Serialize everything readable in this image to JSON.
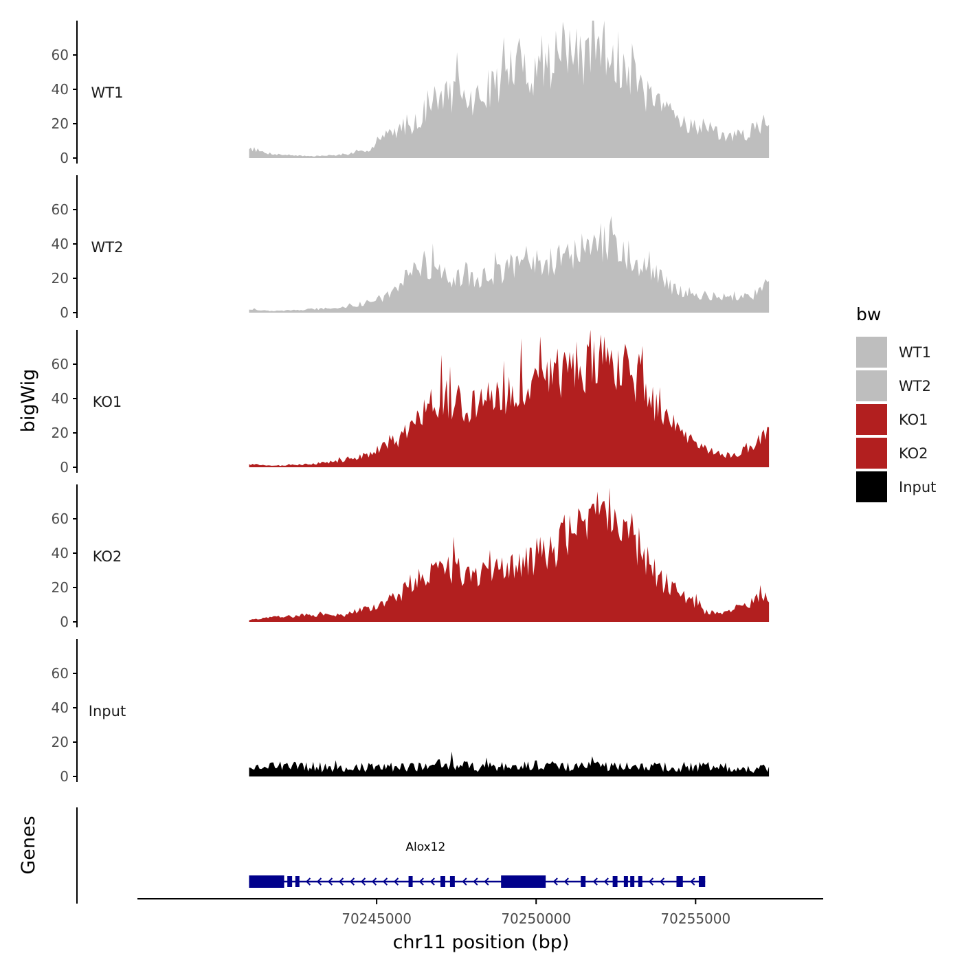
{
  "chart_data": {
    "type": "area",
    "region": {
      "chromosome": "chr11",
      "start": 70241000,
      "end": 70257300
    },
    "xlabel": "chr11 position (bp)",
    "ylabel": "bigWig",
    "xlim": [
      70237500,
      70259000
    ],
    "ylim": [
      0,
      80
    ],
    "x_ticks": [
      70245000,
      70250000,
      70255000
    ],
    "x_tick_labels": [
      "70245000",
      "70250000",
      "70255000"
    ],
    "y_ticks": [
      0,
      20,
      40,
      60
    ],
    "y_tick_labels": [
      "0",
      "20",
      "40",
      "60"
    ],
    "grid": false,
    "legend": {
      "title": "bw",
      "position": "right",
      "entries": [
        {
          "name": "WT1",
          "color": "#bebebe"
        },
        {
          "name": "WT2",
          "color": "#bebebe"
        },
        {
          "name": "KO1",
          "color": "#b21f1f"
        },
        {
          "name": "KO2",
          "color": "#b21f1f"
        },
        {
          "name": "Input",
          "color": "#000000"
        }
      ]
    },
    "series": [
      {
        "name": "WT1",
        "color": "#bebebe",
        "anchors": [
          [
            70241000,
            6
          ],
          [
            70241500,
            3
          ],
          [
            70242000,
            2
          ],
          [
            70243000,
            1
          ],
          [
            70244000,
            2
          ],
          [
            70244700,
            4
          ],
          [
            70245200,
            12
          ],
          [
            70245800,
            18
          ],
          [
            70246200,
            20
          ],
          [
            70246600,
            30
          ],
          [
            70247000,
            35
          ],
          [
            70247500,
            38
          ],
          [
            70248000,
            32
          ],
          [
            70248500,
            40
          ],
          [
            70249000,
            48
          ],
          [
            70249500,
            55
          ],
          [
            70250000,
            50
          ],
          [
            70250500,
            57
          ],
          [
            70251000,
            62
          ],
          [
            70251500,
            55
          ],
          [
            70251800,
            68
          ],
          [
            70252000,
            65
          ],
          [
            70252400,
            60
          ],
          [
            70252800,
            52
          ],
          [
            70253300,
            40
          ],
          [
            70253800,
            30
          ],
          [
            70254300,
            25
          ],
          [
            70254800,
            20
          ],
          [
            70255300,
            16
          ],
          [
            70255800,
            14
          ],
          [
            70256300,
            12
          ],
          [
            70256800,
            16
          ],
          [
            70257300,
            22
          ]
        ]
      },
      {
        "name": "WT2",
        "color": "#bebebe",
        "anchors": [
          [
            70241000,
            2
          ],
          [
            70241500,
            1
          ],
          [
            70242000,
            1
          ],
          [
            70243000,
            2
          ],
          [
            70244000,
            3
          ],
          [
            70244700,
            6
          ],
          [
            70245200,
            9
          ],
          [
            70245600,
            12
          ],
          [
            70246000,
            22
          ],
          [
            70246500,
            28
          ],
          [
            70247000,
            22
          ],
          [
            70247500,
            20
          ],
          [
            70248000,
            18
          ],
          [
            70248500,
            22
          ],
          [
            70249000,
            24
          ],
          [
            70249500,
            26
          ],
          [
            70250000,
            26
          ],
          [
            70250500,
            30
          ],
          [
            70251000,
            34
          ],
          [
            70251500,
            36
          ],
          [
            70252000,
            40
          ],
          [
            70252400,
            44
          ],
          [
            70252800,
            36
          ],
          [
            70253300,
            28
          ],
          [
            70253800,
            22
          ],
          [
            70254300,
            14
          ],
          [
            70254800,
            12
          ],
          [
            70255300,
            10
          ],
          [
            70255800,
            9
          ],
          [
            70256300,
            8
          ],
          [
            70256800,
            10
          ],
          [
            70257300,
            18
          ]
        ]
      },
      {
        "name": "KO1",
        "color": "#b21f1f",
        "anchors": [
          [
            70241000,
            2
          ],
          [
            70241500,
            1
          ],
          [
            70242000,
            1
          ],
          [
            70243000,
            2
          ],
          [
            70244000,
            4
          ],
          [
            70244700,
            7
          ],
          [
            70245200,
            12
          ],
          [
            70245700,
            16
          ],
          [
            70246000,
            22
          ],
          [
            70246500,
            32
          ],
          [
            70247000,
            40
          ],
          [
            70247500,
            38
          ],
          [
            70248000,
            36
          ],
          [
            70248500,
            38
          ],
          [
            70249000,
            42
          ],
          [
            70249500,
            46
          ],
          [
            70250000,
            48
          ],
          [
            70250500,
            52
          ],
          [
            70251000,
            56
          ],
          [
            70251500,
            60
          ],
          [
            70252000,
            66
          ],
          [
            70252400,
            64
          ],
          [
            70252800,
            58
          ],
          [
            70253300,
            48
          ],
          [
            70253800,
            32
          ],
          [
            70254300,
            24
          ],
          [
            70254800,
            16
          ],
          [
            70255300,
            10
          ],
          [
            70255800,
            7
          ],
          [
            70256300,
            8
          ],
          [
            70256800,
            12
          ],
          [
            70257300,
            20
          ]
        ]
      },
      {
        "name": "KO2",
        "color": "#b21f1f",
        "anchors": [
          [
            70241000,
            1
          ],
          [
            70241500,
            2
          ],
          [
            70242000,
            3
          ],
          [
            70243000,
            4
          ],
          [
            70244000,
            4
          ],
          [
            70244700,
            8
          ],
          [
            70245200,
            12
          ],
          [
            70245700,
            14
          ],
          [
            70246000,
            22
          ],
          [
            70246500,
            26
          ],
          [
            70247000,
            32
          ],
          [
            70247500,
            30
          ],
          [
            70248000,
            26
          ],
          [
            70248500,
            28
          ],
          [
            70249000,
            30
          ],
          [
            70249500,
            34
          ],
          [
            70250000,
            38
          ],
          [
            70250500,
            42
          ],
          [
            70251000,
            50
          ],
          [
            70251500,
            56
          ],
          [
            70252000,
            64
          ],
          [
            70252400,
            62
          ],
          [
            70252800,
            56
          ],
          [
            70253300,
            42
          ],
          [
            70253800,
            26
          ],
          [
            70254300,
            20
          ],
          [
            70254800,
            14
          ],
          [
            70255300,
            6
          ],
          [
            70255800,
            5
          ],
          [
            70256300,
            8
          ],
          [
            70256800,
            12
          ],
          [
            70257300,
            16
          ]
        ]
      },
      {
        "name": "Input",
        "color": "#000000",
        "anchors": [
          [
            70241000,
            5
          ],
          [
            70242000,
            5
          ],
          [
            70243000,
            5
          ],
          [
            70244000,
            4
          ],
          [
            70245000,
            5
          ],
          [
            70246000,
            5
          ],
          [
            70247000,
            6
          ],
          [
            70248000,
            5
          ],
          [
            70249000,
            5
          ],
          [
            70250000,
            6
          ],
          [
            70251000,
            5
          ],
          [
            70252000,
            5
          ],
          [
            70253000,
            5
          ],
          [
            70254000,
            5
          ],
          [
            70255000,
            5
          ],
          [
            70256000,
            5
          ],
          [
            70257300,
            4
          ]
        ]
      }
    ],
    "gene_track": {
      "ylabel": "Genes",
      "genes": [
        {
          "name": "Alox12",
          "strand": "-",
          "start": 70241000,
          "end": 70255300,
          "exons": [
            [
              70241000,
              70242100
            ],
            [
              70242200,
              70242350
            ],
            [
              70242450,
              70242550
            ],
            [
              70246000,
              70246100
            ],
            [
              70247000,
              70247150
            ],
            [
              70247300,
              70247450
            ],
            [
              70248900,
              70250300
            ],
            [
              70251400,
              70251550
            ],
            [
              70252400,
              70252550
            ],
            [
              70252750,
              70252850
            ],
            [
              70252950,
              70253050
            ],
            [
              70253200,
              70253300
            ],
            [
              70254400,
              70254600
            ],
            [
              70255100,
              70255300
            ]
          ],
          "thick_exons": [
            [
              70241000,
              70242100
            ],
            [
              70248900,
              70250300
            ]
          ]
        }
      ]
    }
  }
}
